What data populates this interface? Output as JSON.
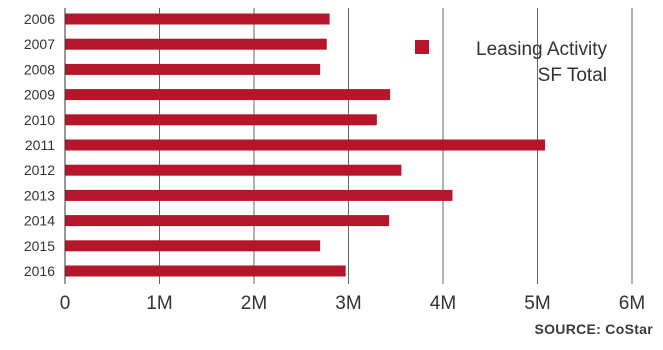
{
  "chart_data": {
    "type": "bar",
    "orientation": "horizontal",
    "categories": [
      "2006",
      "2007",
      "2008",
      "2009",
      "2010",
      "2011",
      "2012",
      "2013",
      "2014",
      "2015",
      "2016"
    ],
    "series": [
      {
        "name": "Leasing Activity SF Total",
        "legend_lines": [
          "Leasing Activity",
          "SF Total"
        ],
        "values": [
          2800000,
          2770000,
          2700000,
          3440000,
          3300000,
          5080000,
          3560000,
          4100000,
          3430000,
          2700000,
          2970000
        ],
        "color": "#b5162b"
      }
    ],
    "x_ticks": [
      0,
      1000000,
      2000000,
      3000000,
      4000000,
      5000000,
      6000000
    ],
    "x_tick_labels": [
      "0",
      "1M",
      "2M",
      "3M",
      "4M",
      "5M",
      "6M"
    ],
    "xlim": [
      0,
      6000000
    ],
    "grid": {
      "vertical": true,
      "horizontal": false,
      "color": "#666666"
    },
    "legend": {
      "position": "top-right"
    },
    "title": "",
    "xlabel": "",
    "ylabel": ""
  },
  "source": "SOURCE: CoStar",
  "colors": {
    "bar": "#b5162b",
    "text": "#333333",
    "grid": "#666666",
    "axis": "#333333"
  }
}
